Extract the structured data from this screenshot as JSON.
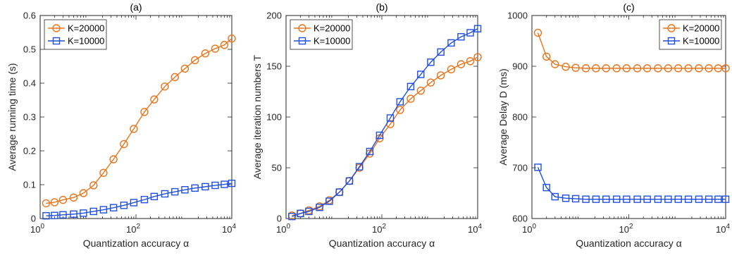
{
  "chart_data": [
    {
      "type": "line",
      "title": "(a)",
      "xlabel": "Quantization accuracy  α",
      "ylabel": "Average running time  (s)",
      "xscale": "log",
      "xlim": [
        1,
        10000
      ],
      "ylim": [
        0,
        0.6
      ],
      "xticks": [
        {
          "value": 1,
          "base": "10",
          "exp": "0"
        },
        {
          "value": 100,
          "base": "10",
          "exp": "2"
        },
        {
          "value": 10000,
          "base": "10",
          "exp": "4"
        }
      ],
      "yticks": [
        {
          "value": 0,
          "label": "0"
        },
        {
          "value": 0.1,
          "label": "0.1"
        },
        {
          "value": 0.2,
          "label": "0.2"
        },
        {
          "value": 0.3,
          "label": "0.3"
        },
        {
          "value": 0.4,
          "label": "0.4"
        },
        {
          "value": 0.5,
          "label": "0.5"
        },
        {
          "value": 0.6,
          "label": "0.6"
        }
      ],
      "legend": "top-left",
      "x": [
        1.33,
        2,
        3,
        5,
        8,
        13,
        21,
        34,
        56,
        90,
        150,
        240,
        400,
        650,
        1050,
        1700,
        2800,
        4500,
        7000,
        10000
      ],
      "series": [
        {
          "name": "K=20000",
          "color": "#E8741A",
          "marker": "circle",
          "values": [
            0.045,
            0.048,
            0.055,
            0.062,
            0.075,
            0.098,
            0.135,
            0.175,
            0.22,
            0.265,
            0.315,
            0.352,
            0.39,
            0.418,
            0.443,
            0.468,
            0.488,
            0.502,
            0.513,
            0.532
          ]
        },
        {
          "name": "K=10000",
          "color": "#1F4FE0",
          "marker": "square",
          "values": [
            0.008,
            0.009,
            0.011,
            0.013,
            0.016,
            0.021,
            0.026,
            0.032,
            0.039,
            0.047,
            0.056,
            0.065,
            0.073,
            0.079,
            0.085,
            0.09,
            0.094,
            0.098,
            0.101,
            0.104
          ]
        }
      ]
    },
    {
      "type": "line",
      "title": "(b)",
      "xlabel": "Quantization accuracy  α",
      "ylabel": "Average iteration numbers  T",
      "xscale": "log",
      "xlim": [
        1,
        10000
      ],
      "ylim": [
        0,
        200
      ],
      "xticks": [
        {
          "value": 1,
          "base": "10",
          "exp": "0"
        },
        {
          "value": 100,
          "base": "10",
          "exp": "2"
        },
        {
          "value": 10000,
          "base": "10",
          "exp": "4"
        }
      ],
      "yticks": [
        {
          "value": 0,
          "label": "0"
        },
        {
          "value": 50,
          "label": "50"
        },
        {
          "value": 100,
          "label": "100"
        },
        {
          "value": 150,
          "label": "150"
        },
        {
          "value": 200,
          "label": "200"
        }
      ],
      "legend": "top-left",
      "x": [
        1.33,
        2,
        3,
        5,
        8,
        13,
        21,
        34,
        56,
        90,
        150,
        240,
        400,
        650,
        1050,
        1700,
        2800,
        4500,
        7000,
        10000
      ],
      "series": [
        {
          "name": "K=20000",
          "color": "#E8741A",
          "marker": "circle",
          "values": [
            3,
            5,
            8,
            12,
            18,
            26,
            37,
            50,
            64,
            79,
            93,
            107,
            118,
            126,
            134,
            141,
            147,
            152,
            155,
            159
          ]
        },
        {
          "name": "K=10000",
          "color": "#1F4FE0",
          "marker": "square",
          "values": [
            2,
            5,
            7,
            11,
            17,
            26,
            37,
            51,
            66,
            82,
            99,
            115,
            130,
            142,
            154,
            164,
            173,
            179,
            183,
            187
          ]
        }
      ]
    },
    {
      "type": "line",
      "title": "(c)",
      "xlabel": "Quantization accuracy  α",
      "ylabel": "Average Delay  D (ms)",
      "xscale": "log",
      "xlim": [
        1,
        10000
      ],
      "ylim": [
        600,
        1000
      ],
      "xticks": [
        {
          "value": 1,
          "base": "10",
          "exp": "0"
        },
        {
          "value": 100,
          "base": "10",
          "exp": "2"
        },
        {
          "value": 10000,
          "base": "10",
          "exp": "4"
        }
      ],
      "yticks": [
        {
          "value": 600,
          "label": "600"
        },
        {
          "value": 700,
          "label": "700"
        },
        {
          "value": 800,
          "label": "800"
        },
        {
          "value": 900,
          "label": "900"
        },
        {
          "value": 1000,
          "label": "1000"
        }
      ],
      "legend": "top-right",
      "x": [
        1.33,
        2,
        3,
        5,
        8,
        13,
        21,
        34,
        56,
        90,
        150,
        240,
        400,
        650,
        1050,
        1700,
        2800,
        4500,
        7000,
        10000
      ],
      "series": [
        {
          "name": "K=20000",
          "color": "#E8741A",
          "marker": "circle",
          "values": [
            966,
            919,
            904,
            899,
            897,
            896,
            896,
            896,
            896,
            896,
            896,
            896,
            896,
            896,
            896,
            896,
            896,
            896,
            896,
            896
          ]
        },
        {
          "name": "K=10000",
          "color": "#1F4FE0",
          "marker": "square",
          "values": [
            701,
            661,
            643,
            640,
            639,
            638,
            638,
            638,
            638,
            638,
            638,
            638,
            638,
            638,
            638,
            638,
            638,
            638,
            638,
            638
          ]
        }
      ]
    }
  ]
}
